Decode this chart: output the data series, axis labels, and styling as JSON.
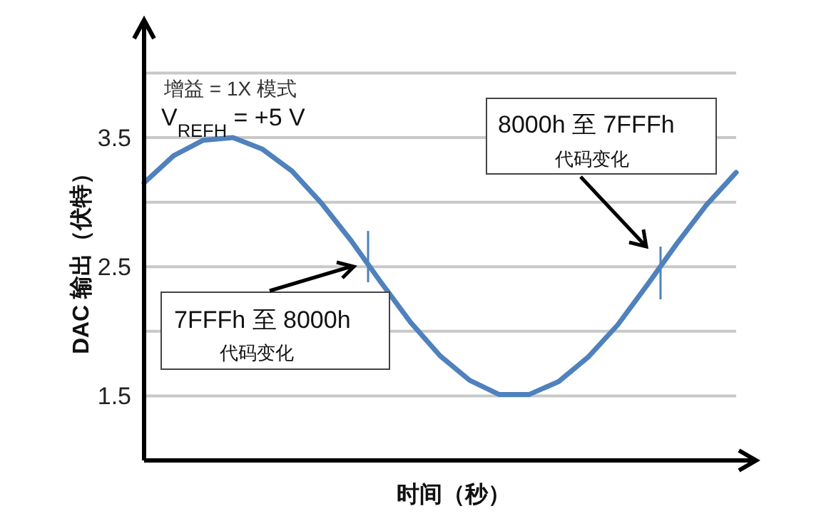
{
  "chart_data": {
    "type": "line",
    "xlabel": "时间（秒）",
    "ylabel": "DAC 输出（伏特）",
    "categories": [
      null,
      null,
      null,
      null,
      null,
      null,
      null,
      null,
      null,
      null,
      null,
      null,
      null,
      null,
      null,
      null,
      null,
      null,
      null,
      null,
      null
    ],
    "values": [
      3.15,
      3.36,
      3.48,
      3.5,
      3.41,
      3.24,
      2.99,
      2.7,
      2.38,
      2.07,
      1.81,
      1.62,
      1.51,
      1.51,
      1.61,
      1.8,
      2.05,
      2.36,
      2.68,
      2.98,
      3.23
    ],
    "color": "#4f81bd",
    "ylim": [
      1,
      4.4
    ],
    "yticks": [
      1.5,
      {
        "value": 2,
        "label": null
      },
      2.5,
      {
        "value": 3,
        "label": null
      },
      3.5,
      {
        "value": 4,
        "label": null
      }
    ],
    "grid": "y",
    "tick_labels": "y",
    "marker": "none",
    "line_style": "solid",
    "annotations": [
      "增益 = 1X 模式",
      "V$_{REFH}$ = +5 V",
      "7FFFh 至 8000h",
      "代码变化",
      "8000h 至 7FFFh",
      "代码变化"
    ]
  }
}
